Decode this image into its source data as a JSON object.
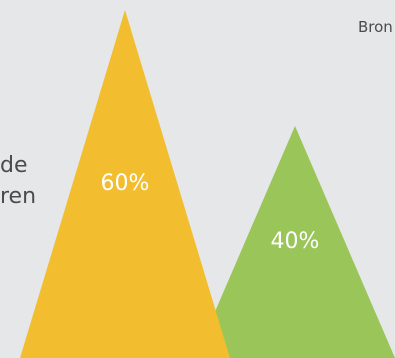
{
  "source_text": "Bron",
  "side_text": {
    "line1": "de",
    "line2": "ren"
  },
  "chart_data": {
    "type": "bar",
    "categories": [
      "",
      ""
    ],
    "values": [
      60,
      40
    ],
    "value_labels": [
      "60%",
      "40%"
    ],
    "unit": "%",
    "colors": [
      "#f2bd2e",
      "#9ac558"
    ],
    "ylim": [
      0,
      60
    ],
    "bar_shape": "triangle",
    "grid": false,
    "legend": "none"
  }
}
